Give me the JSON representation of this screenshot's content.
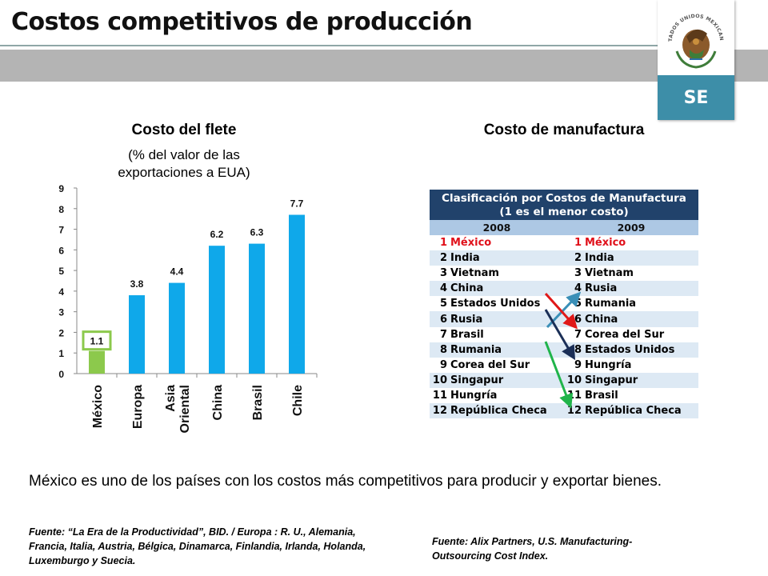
{
  "header": {
    "title": "Costos competitivos de producción",
    "logo_text": "SE",
    "seal_text": "ESTADOS UNIDOS MEXICANOS"
  },
  "freight": {
    "title": "Costo del flete",
    "subtitle_line1": "(% del valor de las",
    "subtitle_line2": "exportaciones a EUA)"
  },
  "manufacturing": {
    "title": "Costo de manufactura",
    "table_title_line1": "Clasificación por Costos de Manufactura",
    "table_title_line2": "(1 es el menor costo)",
    "year_2008": "2008",
    "year_2009": "2009",
    "rows": [
      {
        "r1": "1",
        "c1": "México",
        "r2": "1",
        "c2": "México"
      },
      {
        "r1": "2",
        "c1": "India",
        "r2": "2",
        "c2": "India"
      },
      {
        "r1": "3",
        "c1": "Vietnam",
        "r2": "3",
        "c2": "Vietnam"
      },
      {
        "r1": "4",
        "c1": "China",
        "r2": "4",
        "c2": "Rusia"
      },
      {
        "r1": "5",
        "c1": "Estados Unidos",
        "r2": "5",
        "c2": "Rumania"
      },
      {
        "r1": "6",
        "c1": "Rusia",
        "r2": "6",
        "c2": "China"
      },
      {
        "r1": "7",
        "c1": "Brasil",
        "r2": "7",
        "c2": "Corea del Sur"
      },
      {
        "r1": "8",
        "c1": "Rumania",
        "r2": "8",
        "c2": "Estados Unidos"
      },
      {
        "r1": "9",
        "c1": "Corea del Sur",
        "r2": "9",
        "c2": "Hungría"
      },
      {
        "r1": "10",
        "c1": "Singapur",
        "r2": "10",
        "c2": "Singapur"
      },
      {
        "r1": "11",
        "c1": "Hungría",
        "r2": "11",
        "c2": "Brasil"
      },
      {
        "r1": "12",
        "c1": "República Checa",
        "r2": "12",
        "c2": "República Checa"
      }
    ],
    "arrows": [
      {
        "from_rank_2009": 6,
        "to_rank_2009": 4,
        "color": "#3a8fb7"
      },
      {
        "from_rank_2008": 4,
        "to_rank_2009": 6,
        "color": "#e01818"
      },
      {
        "from_rank_2008": 5,
        "to_rank_2009": 8,
        "color": "#1b2f57"
      },
      {
        "from_rank_2008": 7,
        "to_rank_2009": 11,
        "color": "#20b44a"
      }
    ]
  },
  "chart_data": {
    "type": "bar",
    "categories": [
      "México",
      "Europa",
      "Asia Oriental",
      "China",
      "Brasil",
      "Chile"
    ],
    "values": [
      1.1,
      3.8,
      4.4,
      6.2,
      6.3,
      7.7
    ],
    "value_labels": [
      "1.1",
      "3.8",
      "4.4",
      "6.2",
      "6.3",
      "7.7"
    ],
    "yticks": [
      "0",
      "1",
      "2",
      "3",
      "4",
      "5",
      "6",
      "7",
      "8",
      "9"
    ],
    "ylim": [
      0,
      9
    ],
    "grid": false,
    "colors": {
      "highlight": "#8cc94c",
      "bar": "#0fa8ea",
      "highlight_border": "#8cc94c"
    },
    "highlight_index": 0
  },
  "footer": {
    "summary": "México es uno de los países con los costos más competitivos para producir y exportar bienes.",
    "source_left": "Fuente: “La Era de la Productividad”, BID. / Europa : R. U., Alemania, Francia, Italia, Austria, Bélgica, Dinamarca, Finlandia, Irlanda, Holanda, Luxemburgo y Suecia.",
    "source_right": "Fuente: Alix Partners, U.S. Manufacturing-Outsourcing Cost Index."
  }
}
